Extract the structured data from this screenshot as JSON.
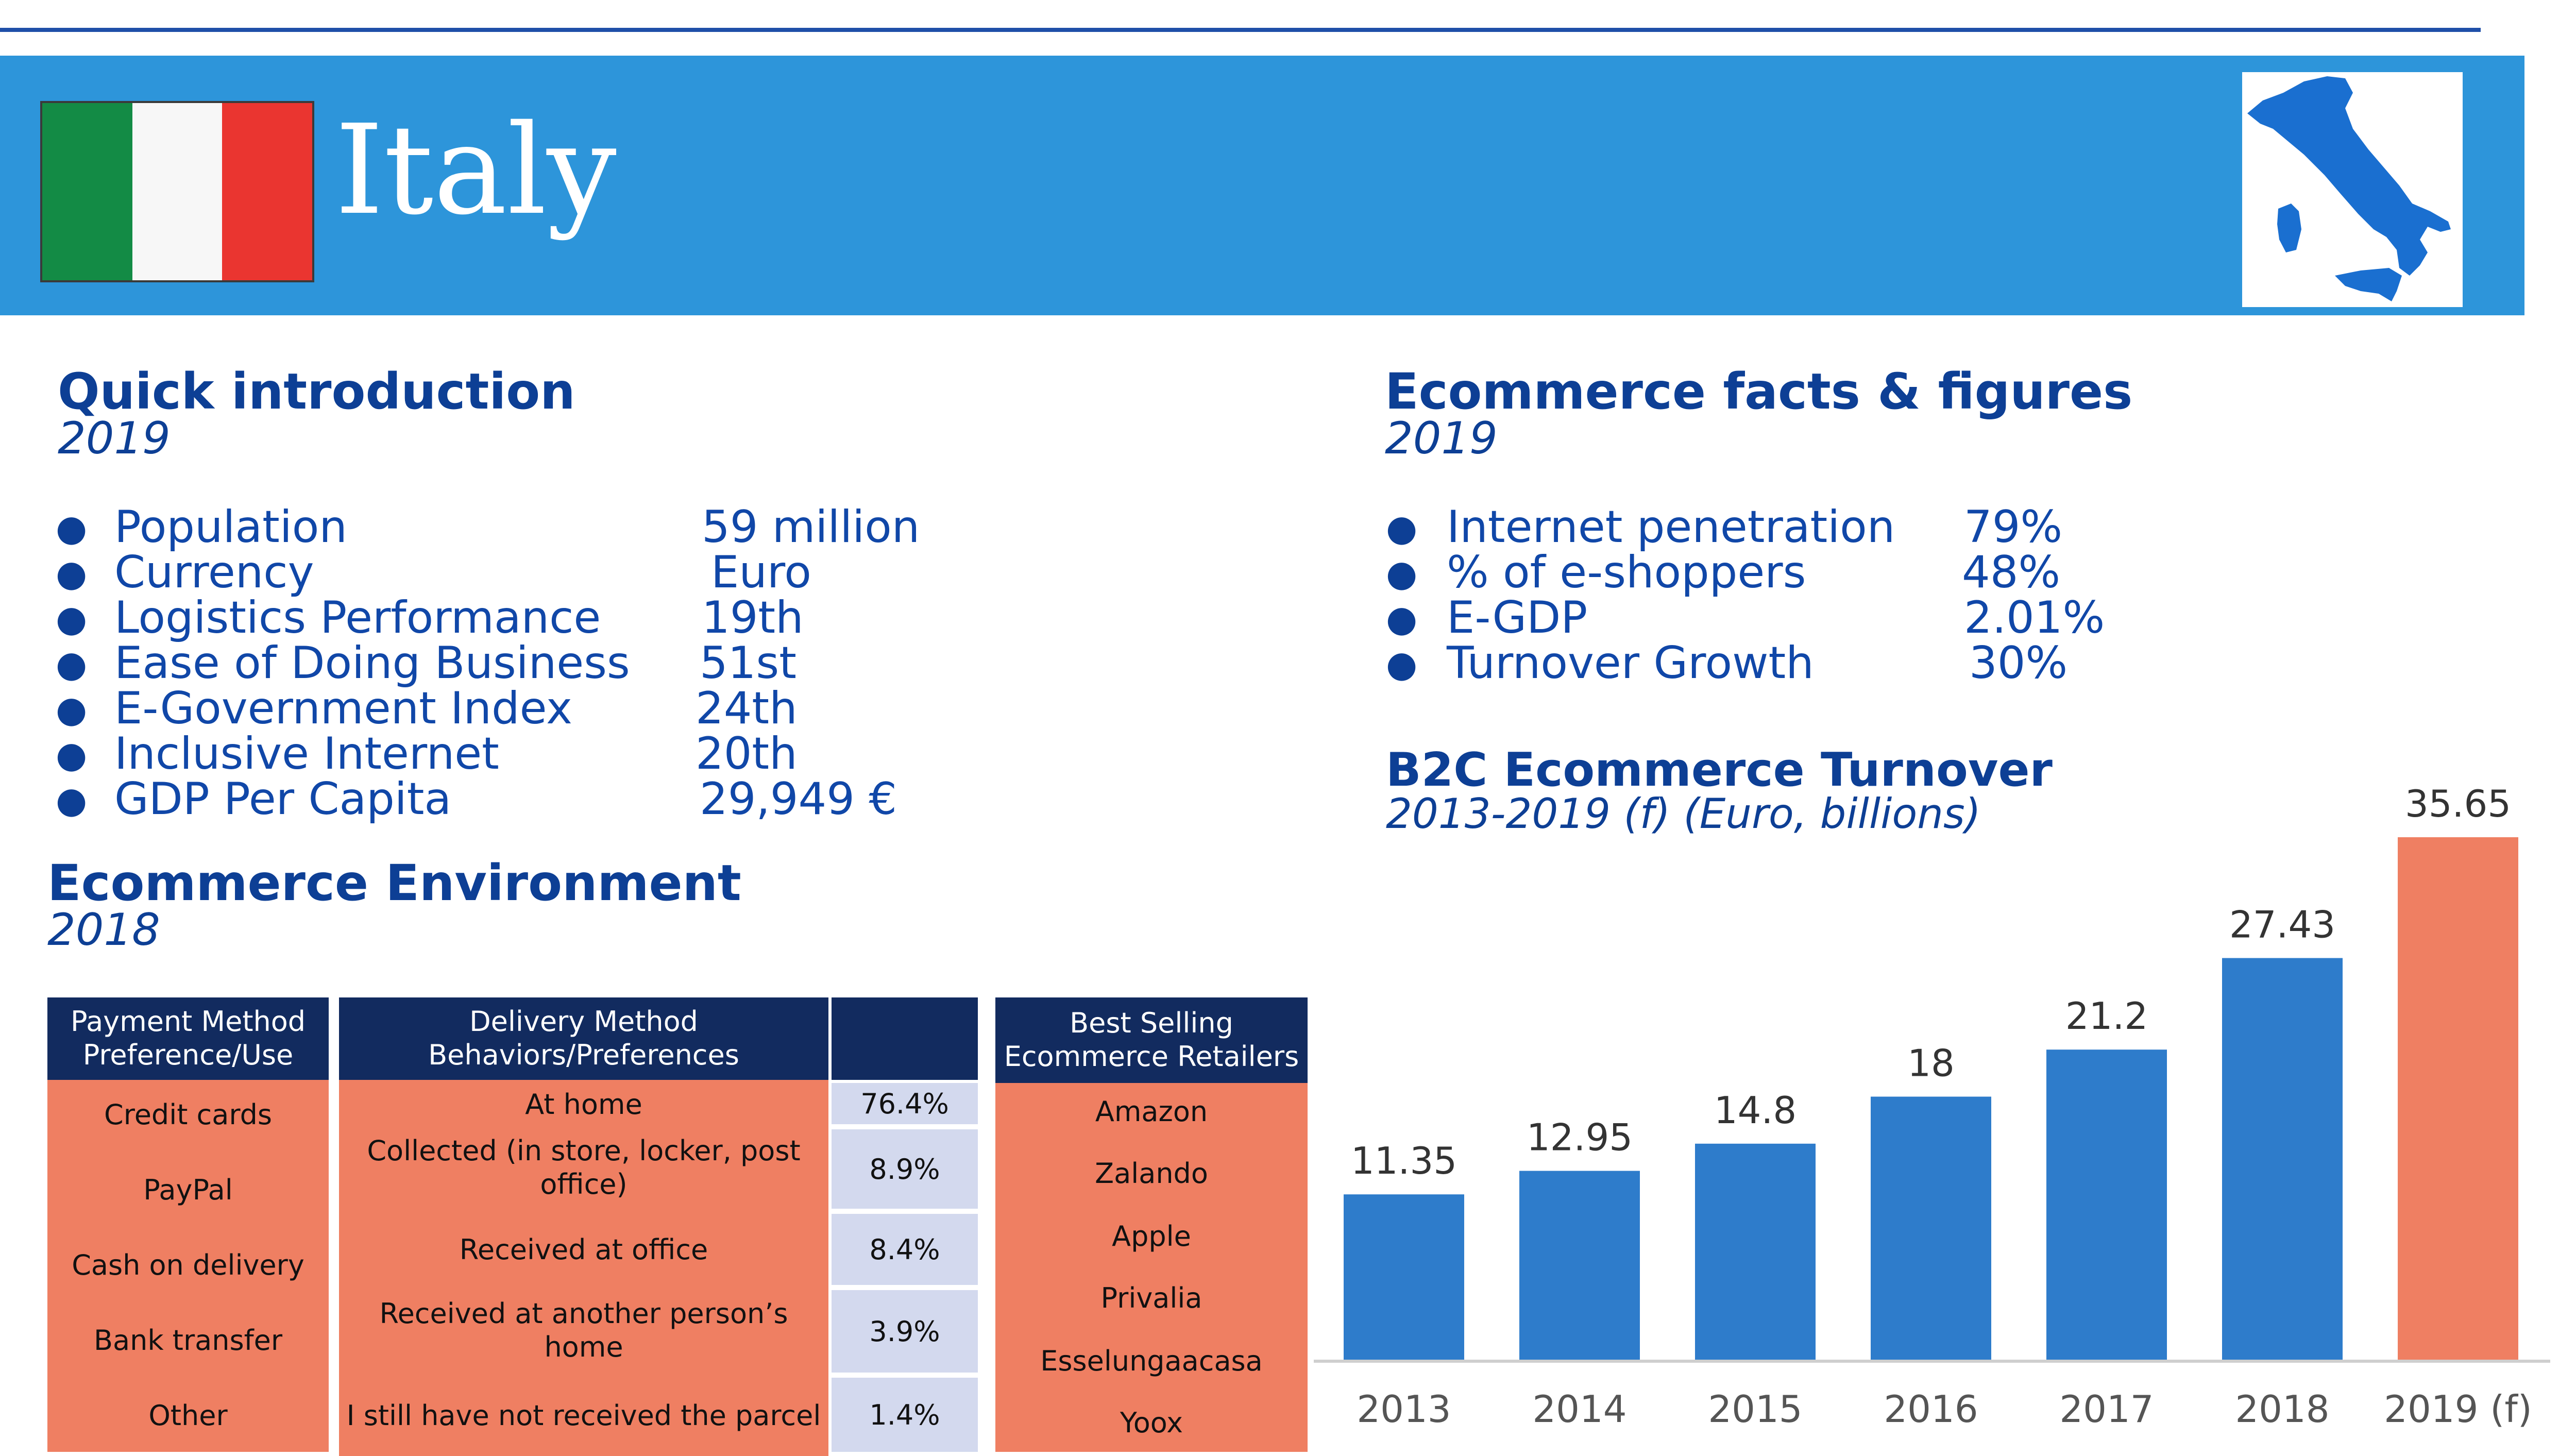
{
  "header": {
    "country": "Italy"
  },
  "flag_colors": [
    "#138b45",
    "#f7f7f7",
    "#ea3530"
  ],
  "map_color": "#1a6fd0",
  "intro": {
    "title": "Quick introduction",
    "year": "2019",
    "items": [
      {
        "label": "Population",
        "value": "59 million"
      },
      {
        "label": "Currency",
        "value": "Euro"
      },
      {
        "label": "Logistics Performance",
        "value": "19th"
      },
      {
        "label": "Ease of Doing Business",
        "value": "51st"
      },
      {
        "label": "E-Government Index",
        "value": "24th"
      },
      {
        "label": "Inclusive Internet",
        "value": "20th"
      },
      {
        "label": "GDP Per Capita",
        "value": "29,949 €"
      }
    ]
  },
  "facts": {
    "title": "Ecommerce facts & figures",
    "year": "2019",
    "items": [
      {
        "label": "Internet penetration",
        "value": "79%"
      },
      {
        "label": "% of e-shoppers",
        "value": "48%"
      },
      {
        "label": "E-GDP",
        "value": "2.01%"
      },
      {
        "label": "Turnover Growth",
        "value": "30%"
      }
    ]
  },
  "environment": {
    "title": "Ecommerce Environment",
    "year": "2018",
    "payment": {
      "header": [
        "Payment Method",
        "Preference/Use"
      ],
      "items": [
        "Credit cards",
        "PayPal",
        "Cash on delivery",
        "Bank transfer",
        "Other"
      ]
    },
    "delivery": {
      "header": [
        "Delivery Method",
        "Behaviors/Preferences"
      ],
      "items": [
        {
          "label": [
            "At home"
          ],
          "value": "76.4%"
        },
        {
          "label": [
            "Collected (in store, locker, post",
            "office)"
          ],
          "value": "8.9%"
        },
        {
          "label": [
            "Received at office"
          ],
          "value": "8.4%"
        },
        {
          "label": [
            "Received at another person’s",
            "home"
          ],
          "value": "3.9%"
        },
        {
          "label": [
            "I still have not received the parcel"
          ],
          "value": "1.4%"
        }
      ]
    },
    "retailers": {
      "header": [
        "Best Selling",
        "Ecommerce Retailers"
      ],
      "items": [
        "Amazon",
        "Zalando",
        "Apple",
        "Privalia",
        "Esselungaacasa",
        "Yoox"
      ]
    }
  },
  "chart_data": {
    "type": "bar",
    "title": "B2C Ecommerce Turnover",
    "subtitle": "2013-2019 (f) (Euro, billions)",
    "categories": [
      "2013",
      "2014",
      "2015",
      "2016",
      "2017",
      "2018",
      "2019 (f)"
    ],
    "values": [
      11.35,
      12.95,
      14.8,
      18,
      21.2,
      27.43,
      35.65
    ],
    "labels": [
      "11.35",
      "12.95",
      "14.8",
      "18",
      "21.2",
      "27.43",
      "35.65"
    ],
    "ylim": [
      0,
      40
    ],
    "colors": {
      "actual": "#2e7ccb",
      "forecast": "#ef7f62"
    },
    "grid": false
  }
}
